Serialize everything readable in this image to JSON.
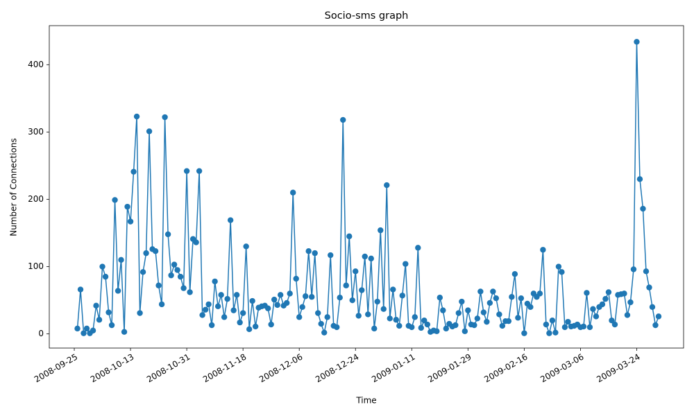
{
  "chart_data": {
    "type": "line",
    "title": "Socio-sms graph",
    "xlabel": "Time",
    "ylabel": "Number of Connections",
    "x": [
      "2008-09-26",
      "2008-09-27",
      "2008-09-28",
      "2008-09-29",
      "2008-09-30",
      "2008-10-01",
      "2008-10-02",
      "2008-10-03",
      "2008-10-04",
      "2008-10-05",
      "2008-10-06",
      "2008-10-07",
      "2008-10-08",
      "2008-10-09",
      "2008-10-10",
      "2008-10-11",
      "2008-10-12",
      "2008-10-13",
      "2008-10-14",
      "2008-10-15",
      "2008-10-16",
      "2008-10-17",
      "2008-10-18",
      "2008-10-19",
      "2008-10-20",
      "2008-10-21",
      "2008-10-22",
      "2008-10-23",
      "2008-10-24",
      "2008-10-25",
      "2008-10-26",
      "2008-10-27",
      "2008-10-28",
      "2008-10-29",
      "2008-10-30",
      "2008-10-31",
      "2008-11-01",
      "2008-11-02",
      "2008-11-03",
      "2008-11-04",
      "2008-11-05",
      "2008-11-06",
      "2008-11-07",
      "2008-11-08",
      "2008-11-09",
      "2008-11-10",
      "2008-11-11",
      "2008-11-12",
      "2008-11-13",
      "2008-11-14",
      "2008-11-15",
      "2008-11-16",
      "2008-11-17",
      "2008-11-18",
      "2008-11-19",
      "2008-11-20",
      "2008-11-21",
      "2008-11-22",
      "2008-11-23",
      "2008-11-24",
      "2008-11-25",
      "2008-11-26",
      "2008-11-27",
      "2008-11-28",
      "2008-11-29",
      "2008-11-30",
      "2008-12-01",
      "2008-12-02",
      "2008-12-03",
      "2008-12-04",
      "2008-12-05",
      "2008-12-06",
      "2008-12-07",
      "2008-12-08",
      "2008-12-09",
      "2008-12-10",
      "2008-12-11",
      "2008-12-12",
      "2008-12-13",
      "2008-12-14",
      "2008-12-15",
      "2008-12-16",
      "2008-12-17",
      "2008-12-18",
      "2008-12-19",
      "2008-12-20",
      "2008-12-21",
      "2008-12-22",
      "2008-12-23",
      "2008-12-24",
      "2008-12-25",
      "2008-12-26",
      "2008-12-27",
      "2008-12-28",
      "2008-12-29",
      "2008-12-30",
      "2008-12-31",
      "2009-01-01",
      "2009-01-02",
      "2009-01-03",
      "2009-01-04",
      "2009-01-05",
      "2009-01-06",
      "2009-01-07",
      "2009-01-08",
      "2009-01-09",
      "2009-01-10",
      "2009-01-11",
      "2009-01-12",
      "2009-01-13",
      "2009-01-14",
      "2009-01-15",
      "2009-01-16",
      "2009-01-17",
      "2009-01-18",
      "2009-01-19",
      "2009-01-20",
      "2009-01-21",
      "2009-01-22",
      "2009-01-23",
      "2009-01-24",
      "2009-01-25",
      "2009-01-26",
      "2009-01-27",
      "2009-01-28",
      "2009-01-29",
      "2009-01-30",
      "2009-01-31",
      "2009-02-01",
      "2009-02-02",
      "2009-02-03",
      "2009-02-04",
      "2009-02-05",
      "2009-02-06",
      "2009-02-07",
      "2009-02-08",
      "2009-02-09",
      "2009-02-10",
      "2009-02-11",
      "2009-02-12",
      "2009-02-13",
      "2009-02-14",
      "2009-02-15",
      "2009-02-16",
      "2009-02-17",
      "2009-02-18",
      "2009-02-19",
      "2009-02-20",
      "2009-02-21",
      "2009-02-22",
      "2009-02-23",
      "2009-02-24",
      "2009-02-25",
      "2009-02-26",
      "2009-02-27",
      "2009-02-28",
      "2009-03-01",
      "2009-03-02",
      "2009-03-03",
      "2009-03-04",
      "2009-03-05",
      "2009-03-06",
      "2009-03-07",
      "2009-03-08",
      "2009-03-09",
      "2009-03-10",
      "2009-03-11",
      "2009-03-12",
      "2009-03-13",
      "2009-03-14",
      "2009-03-15",
      "2009-03-16",
      "2009-03-17",
      "2009-03-18",
      "2009-03-19",
      "2009-03-20",
      "2009-03-21",
      "2009-03-22",
      "2009-03-23",
      "2009-03-24",
      "2009-03-25",
      "2009-03-26",
      "2009-03-27",
      "2009-03-28",
      "2009-03-29",
      "2009-03-30",
      "2009-03-31"
    ],
    "values": [
      8,
      66,
      1,
      8,
      1,
      5,
      42,
      21,
      100,
      85,
      32,
      13,
      199,
      64,
      110,
      3,
      189,
      167,
      241,
      323,
      31,
      92,
      120,
      301,
      126,
      123,
      72,
      44,
      322,
      148,
      87,
      103,
      95,
      85,
      68,
      242,
      62,
      141,
      136,
      242,
      28,
      36,
      44,
      13,
      78,
      41,
      58,
      25,
      52,
      169,
      35,
      58,
      17,
      31,
      130,
      7,
      49,
      11,
      39,
      41,
      42,
      38,
      14,
      51,
      43,
      58,
      42,
      46,
      60,
      210,
      82,
      25,
      40,
      56,
      123,
      55,
      120,
      31,
      15,
      2,
      25,
      117,
      12,
      10,
      54,
      318,
      72,
      145,
      50,
      93,
      27,
      65,
      115,
      29,
      112,
      8,
      48,
      154,
      37,
      221,
      23,
      66,
      21,
      12,
      57,
      104,
      12,
      10,
      25,
      128,
      9,
      20,
      14,
      3,
      5,
      4,
      54,
      35,
      8,
      15,
      11,
      13,
      31,
      48,
      4,
      35,
      14,
      13,
      23,
      63,
      32,
      18,
      46,
      63,
      53,
      29,
      12,
      19,
      19,
      55,
      89,
      24,
      53,
      1,
      45,
      40,
      60,
      55,
      60,
      125,
      14,
      1,
      20,
      2,
      100,
      92,
      10,
      18,
      11,
      12,
      14,
      10,
      11,
      61,
      10,
      37,
      26,
      40,
      44,
      52,
      62,
      20,
      14,
      58,
      59,
      60,
      28,
      47,
      96,
      434,
      230,
      186,
      93,
      69,
      40,
      13,
      26
    ],
    "color": "#1f77b4",
    "xlim": [
      "2008-09-17",
      "2009-04-08"
    ],
    "xticks": [
      "2008-09-25",
      "2008-10-13",
      "2008-10-31",
      "2008-11-18",
      "2008-12-06",
      "2008-12-24",
      "2009-01-11",
      "2009-01-29",
      "2009-02-16",
      "2009-03-06",
      "2009-03-24"
    ],
    "ylim": [
      -21,
      458
    ],
    "yticks": [
      0,
      100,
      200,
      300,
      400
    ]
  }
}
